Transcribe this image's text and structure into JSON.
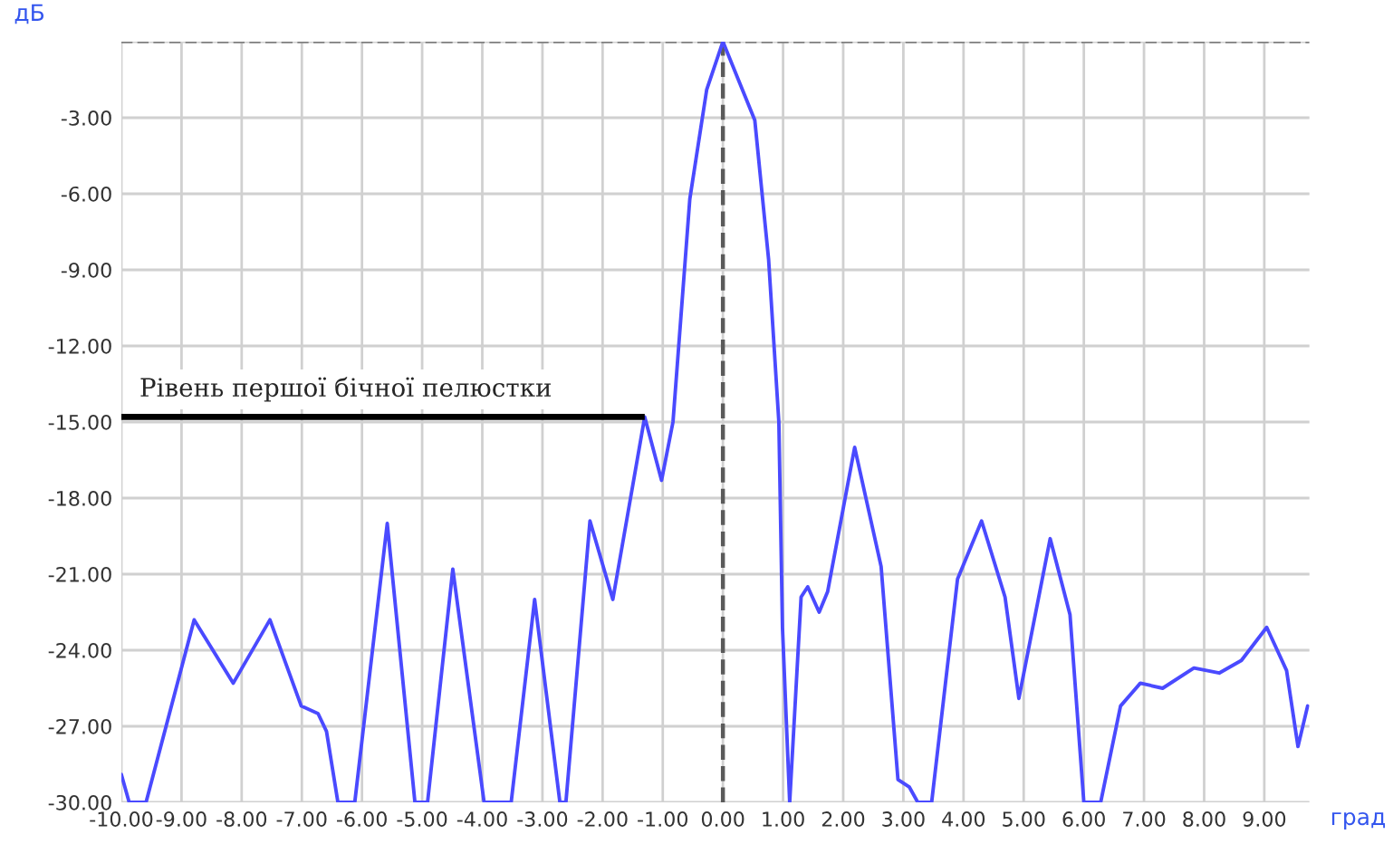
{
  "chart_data": {
    "type": "line",
    "xlabel": "град",
    "ylabel": "дБ",
    "x": [
      -10,
      -9.87,
      -9.59,
      -8.79,
      -8.14,
      -7.53,
      -7.01,
      -6.73,
      -6.59,
      -6.4,
      -6.12,
      -5.58,
      -5.12,
      -4.91,
      -4.49,
      -3.97,
      -3.52,
      -3.13,
      -2.71,
      -2.61,
      -2.21,
      -1.83,
      -1.3,
      -1.02,
      -0.83,
      -0.55,
      -0.27,
      0,
      0.53,
      0.76,
      0.93,
      0.99,
      1.11,
      1.3,
      1.41,
      1.6,
      1.74,
      2.19,
      2.63,
      2.91,
      3.1,
      3.24,
      3.47,
      3.9,
      4.3,
      4.69,
      4.92,
      5.44,
      5.77,
      6.0,
      6.28,
      6.61,
      6.94,
      7.31,
      7.83,
      8.25,
      8.62,
      9.04,
      9.37,
      9.56,
      9.72
    ],
    "series": [
      {
        "color": "#4a4aff",
        "values": [
          -28.9,
          -30,
          -30,
          -22.8,
          -25.3,
          -22.8,
          -26.2,
          -26.5,
          -27.2,
          -30,
          -30,
          -19.0,
          -30,
          -30,
          -20.8,
          -30,
          -30,
          -22.0,
          -30,
          -30,
          -18.9,
          -22.0,
          -14.8,
          -17.3,
          -15.0,
          -6.2,
          -1.9,
          0,
          -3.1,
          -8.6,
          -15.0,
          -23.1,
          -30,
          -21.9,
          -21.5,
          -22.5,
          -21.7,
          -16.0,
          -20.7,
          -29.1,
          -29.4,
          -30,
          -30,
          -21.2,
          -18.9,
          -21.9,
          -25.9,
          -19.6,
          -22.6,
          -30,
          -30,
          -26.2,
          -25.3,
          -25.5,
          -24.7,
          -24.9,
          -24.4,
          -23.1,
          -24.8,
          -27.8,
          -26.2
        ]
      }
    ],
    "xlim": [
      -10,
      9.75
    ],
    "ylim": [
      -30,
      0
    ],
    "xticks": [
      {
        "value": -10,
        "label": "-10.00"
      },
      {
        "value": -9,
        "label": "-9.00"
      },
      {
        "value": -8,
        "label": "-8.00"
      },
      {
        "value": -7,
        "label": "-7.00"
      },
      {
        "value": -6,
        "label": "-6.00"
      },
      {
        "value": -5,
        "label": "-5.00"
      },
      {
        "value": -4,
        "label": "-4.00"
      },
      {
        "value": -3,
        "label": "-3.00"
      },
      {
        "value": -2,
        "label": "-2.00"
      },
      {
        "value": -1,
        "label": "-1.00"
      },
      {
        "value": 0,
        "label": "0.00"
      },
      {
        "value": 1,
        "label": "1.00"
      },
      {
        "value": 2,
        "label": "2.00"
      },
      {
        "value": 3,
        "label": "3.00"
      },
      {
        "value": 4,
        "label": "4.00"
      },
      {
        "value": 5,
        "label": "5.00"
      },
      {
        "value": 6,
        "label": "6.00"
      },
      {
        "value": 7,
        "label": "7.00"
      },
      {
        "value": 8,
        "label": "8.00"
      },
      {
        "value": 9,
        "label": "9.00"
      }
    ],
    "yticks": [
      {
        "value": -30,
        "label": "-30.00"
      },
      {
        "value": -27,
        "label": "-27.00"
      },
      {
        "value": -24,
        "label": "-24.00"
      },
      {
        "value": -21,
        "label": "-21.00"
      },
      {
        "value": -18,
        "label": "-18.00"
      },
      {
        "value": -15,
        "label": "-15.00"
      },
      {
        "value": -12,
        "label": "-12.00"
      },
      {
        "value": -9,
        "label": "-9.00"
      },
      {
        "value": -6,
        "label": "-6.00"
      },
      {
        "value": -3,
        "label": "-3.00"
      },
      {
        "value": 0,
        "label": null
      }
    ],
    "ref_lines": [
      {
        "axis": "x",
        "value": 0,
        "color": "#5a5a5a",
        "line_style": "dashed"
      },
      {
        "axis": "y",
        "value": 0,
        "color": "#808080",
        "line_style": "dashed"
      }
    ],
    "annotations": [
      {
        "text": "Рівень першої бічної пелюстки",
        "x": -1.3,
        "y": -14.8
      }
    ],
    "grid": true,
    "legend": false,
    "marker": "none",
    "line_style": "solid"
  }
}
